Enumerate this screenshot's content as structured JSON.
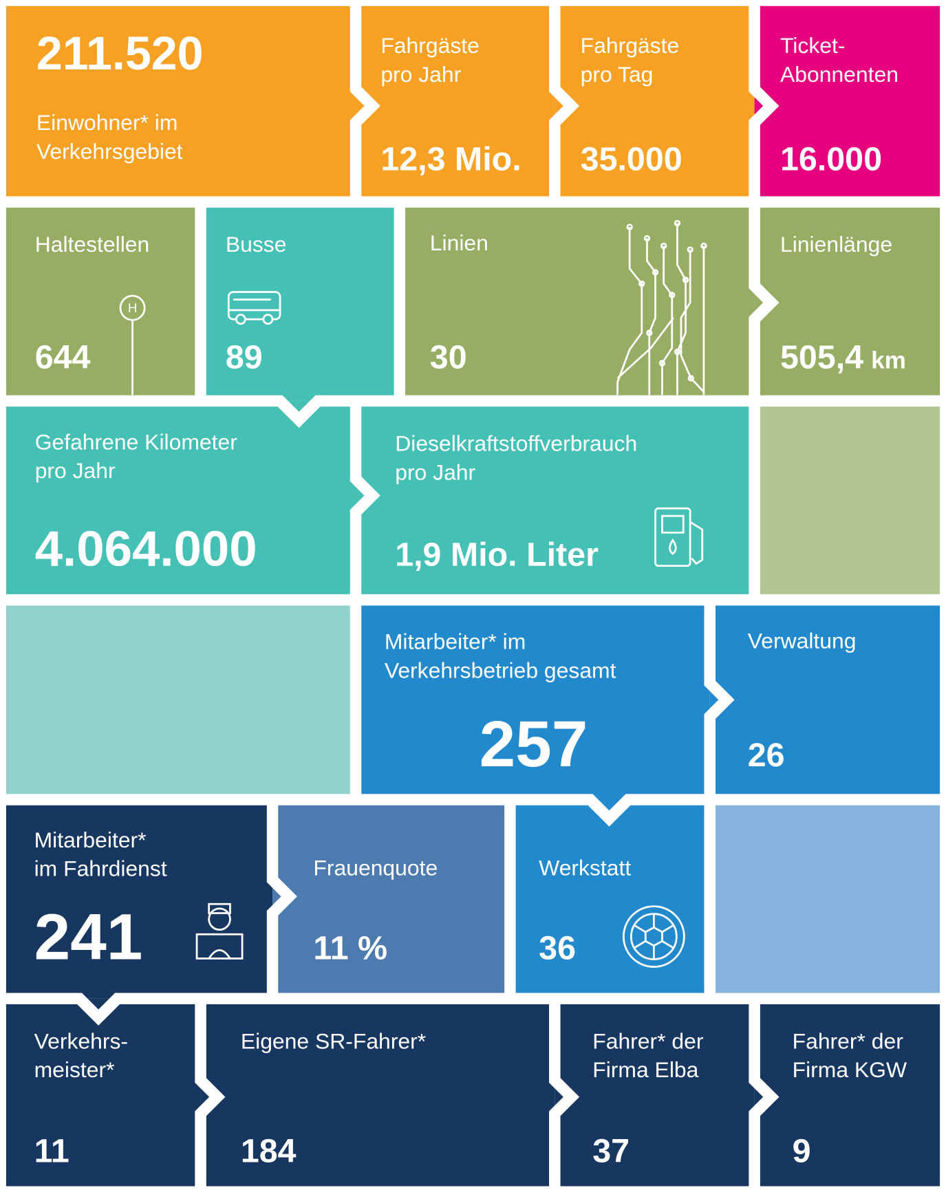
{
  "tiles": [
    {
      "label": [
        "Einwohner* im",
        "Verkehrsgebiet"
      ],
      "value": "211.520"
    },
    {
      "label": [
        "Fahrgäste",
        "pro Jahr"
      ],
      "value": "12,3 Mio."
    },
    {
      "label": [
        "Fahrgäste",
        "pro Tag"
      ],
      "value": "35.000"
    },
    {
      "label": [
        "Ticket-",
        "Abonnenten"
      ],
      "value": "16.000"
    },
    {
      "label": [
        "Haltestellen"
      ],
      "value": "644"
    },
    {
      "label": [
        "Busse"
      ],
      "value": "89"
    },
    {
      "label": [
        "Linien"
      ],
      "value": "30"
    },
    {
      "label": [
        "Linienlänge"
      ],
      "value": "505,4",
      "unit": "km"
    },
    {
      "label": [
        "Gefahrene Kilometer",
        "pro Jahr"
      ],
      "value": "4.064.000"
    },
    {
      "label": [
        "Dieselkraftstoffverbrauch",
        "pro Jahr"
      ],
      "value": "1,9 Mio. Liter"
    },
    {
      "label": [
        "Mitarbeiter* im",
        "Verkehrsbetrieb gesamt"
      ],
      "value": "257"
    },
    {
      "label": [
        "Verwaltung"
      ],
      "value": "26"
    },
    {
      "label": [
        "Mitarbeiter*",
        "im Fahrdienst"
      ],
      "value": "241"
    },
    {
      "label": [
        "Frauenquote"
      ],
      "value": "11 %"
    },
    {
      "label": [
        "Werkstatt"
      ],
      "value": "36"
    },
    {
      "label": [
        "Verkehrs-",
        "meister*"
      ],
      "value": "11"
    },
    {
      "label": [
        "Eigene SR-Fahrer*"
      ],
      "value": "184"
    },
    {
      "label": [
        "Fahrer* der",
        "Firma Elba"
      ],
      "value": "37"
    },
    {
      "label": [
        "Fahrer* der",
        "Firma KGW"
      ],
      "value": "9"
    }
  ]
}
